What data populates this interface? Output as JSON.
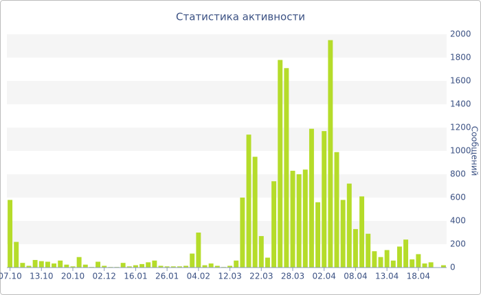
{
  "chart_data": {
    "type": "bar",
    "title": "Статистика активности",
    "y_label": "Сообщений",
    "categories": [
      "07.10",
      null,
      null,
      null,
      null,
      "13.10",
      null,
      null,
      null,
      null,
      "20.10",
      null,
      null,
      null,
      null,
      "02.12",
      null,
      null,
      null,
      null,
      "16.01",
      null,
      null,
      null,
      null,
      "26.01",
      null,
      null,
      null,
      null,
      "04.02",
      null,
      null,
      null,
      null,
      "12.03",
      null,
      null,
      null,
      null,
      "22.03",
      null,
      null,
      null,
      null,
      "28.03",
      null,
      null,
      null,
      null,
      "02.04",
      null,
      null,
      null,
      null,
      "08.04",
      null,
      null,
      null,
      null,
      "13.04",
      null,
      null,
      null,
      null,
      "18.04",
      null,
      null,
      null,
      null
    ],
    "values": [
      580,
      220,
      40,
      15,
      65,
      55,
      50,
      35,
      60,
      25,
      10,
      90,
      25,
      5,
      50,
      15,
      5,
      5,
      40,
      10,
      20,
      30,
      45,
      60,
      15,
      10,
      10,
      10,
      15,
      120,
      300,
      20,
      35,
      15,
      5,
      15,
      60,
      600,
      1140,
      950,
      270,
      85,
      740,
      1780,
      1710,
      830,
      800,
      840,
      1190,
      560,
      1170,
      1950,
      990,
      580,
      720,
      330,
      610,
      290,
      140,
      90,
      150,
      60,
      180,
      240,
      70,
      115,
      35,
      45,
      0,
      20
    ],
    "color": "#b5dc2a",
    "ylim": [
      0,
      2000
    ],
    "yticks": [
      0,
      200,
      400,
      600,
      800,
      1000,
      1200,
      1400,
      1600,
      1800,
      2000
    ],
    "grid": "bands",
    "y_axis_side": "right"
  }
}
